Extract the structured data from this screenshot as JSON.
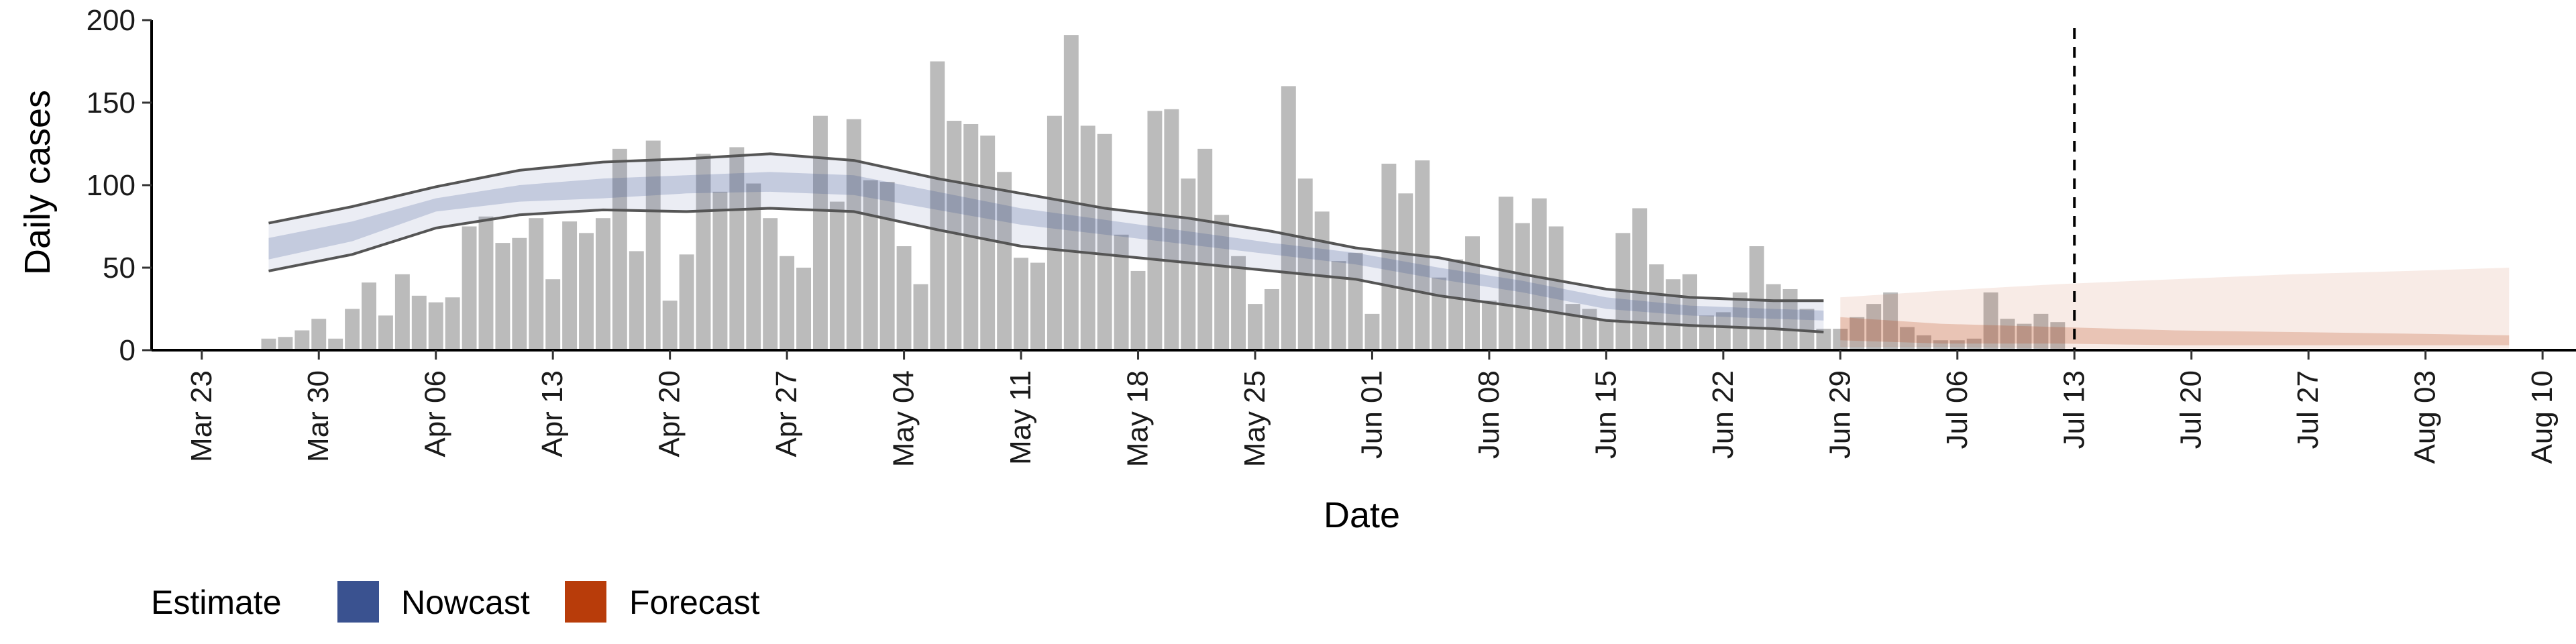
{
  "chart_data": {
    "type": "bar",
    "xlabel": "Date",
    "ylabel": "Daily cases",
    "ylim": [
      0,
      200
    ],
    "yticks": [
      0,
      50,
      100,
      150,
      200
    ],
    "xlim": [
      "2020-03-20",
      "2020-08-12"
    ],
    "xticks": [
      {
        "date": "2020-03-23",
        "label": "Mar 23"
      },
      {
        "date": "2020-03-30",
        "label": "Mar 30"
      },
      {
        "date": "2020-04-06",
        "label": "Apr 06"
      },
      {
        "date": "2020-04-13",
        "label": "Apr 13"
      },
      {
        "date": "2020-04-20",
        "label": "Apr 20"
      },
      {
        "date": "2020-04-27",
        "label": "Apr 27"
      },
      {
        "date": "2020-05-04",
        "label": "May 04"
      },
      {
        "date": "2020-05-11",
        "label": "May 11"
      },
      {
        "date": "2020-05-18",
        "label": "May 18"
      },
      {
        "date": "2020-05-25",
        "label": "May 25"
      },
      {
        "date": "2020-06-01",
        "label": "Jun 01"
      },
      {
        "date": "2020-06-08",
        "label": "Jun 08"
      },
      {
        "date": "2020-06-15",
        "label": "Jun 15"
      },
      {
        "date": "2020-06-22",
        "label": "Jun 22"
      },
      {
        "date": "2020-06-29",
        "label": "Jun 29"
      },
      {
        "date": "2020-07-06",
        "label": "Jul 06"
      },
      {
        "date": "2020-07-13",
        "label": "Jul 13"
      },
      {
        "date": "2020-07-20",
        "label": "Jul 20"
      },
      {
        "date": "2020-07-27",
        "label": "Jul 27"
      },
      {
        "date": "2020-08-03",
        "label": "Aug 03"
      },
      {
        "date": "2020-08-10",
        "label": "Aug 10"
      }
    ],
    "bars": {
      "start_date": "2020-03-27",
      "values": [
        7,
        8,
        12,
        19,
        7,
        25,
        41,
        21,
        46,
        33,
        29,
        32,
        75,
        81,
        65,
        68,
        80,
        43,
        78,
        71,
        80,
        122,
        60,
        127,
        30,
        58,
        119,
        96,
        123,
        101,
        80,
        57,
        50,
        142,
        90,
        140,
        103,
        102,
        63,
        40,
        175,
        139,
        137,
        130,
        108,
        56,
        53,
        142,
        191,
        136,
        131,
        70,
        48,
        145,
        146,
        104,
        122,
        82,
        57,
        28,
        37,
        160,
        104,
        84,
        54,
        59,
        22,
        113,
        95,
        115,
        44,
        55,
        69,
        30,
        93,
        77,
        92,
        75,
        28,
        25,
        18,
        71,
        86,
        52,
        43,
        46,
        21,
        23,
        35,
        63,
        40,
        37,
        25,
        13,
        13,
        20,
        28,
        35,
        14,
        9,
        6,
        6,
        7,
        35,
        19,
        16,
        22,
        17
      ]
    },
    "vline_date": "2020-07-13",
    "series": [
      {
        "name": "Nowcast",
        "color": "#3a5290",
        "dates": [
          "2020-03-27",
          "2020-04-01",
          "2020-04-06",
          "2020-04-11",
          "2020-04-16",
          "2020-04-21",
          "2020-04-26",
          "2020-05-01",
          "2020-05-06",
          "2020-05-11",
          "2020-05-16",
          "2020-05-21",
          "2020-05-26",
          "2020-05-31",
          "2020-06-05",
          "2020-06-10",
          "2020-06-15",
          "2020-06-20",
          "2020-06-25",
          "2020-06-28"
        ],
        "lower90": [
          48,
          58,
          74,
          82,
          85,
          84,
          86,
          84,
          73,
          63,
          58,
          53,
          48,
          43,
          33,
          26,
          18,
          15,
          13,
          11
        ],
        "upper90": [
          77,
          87,
          99,
          109,
          114,
          116,
          119,
          115,
          104,
          95,
          86,
          80,
          72,
          62,
          56,
          46,
          37,
          32,
          30,
          30
        ],
        "lower50": [
          55,
          66,
          84,
          90,
          92,
          95,
          96,
          94,
          85,
          76,
          70,
          64,
          58,
          52,
          43,
          35,
          25,
          21,
          19,
          18
        ],
        "upper50": [
          68,
          78,
          92,
          100,
          104,
          106,
          108,
          106,
          96,
          86,
          79,
          72,
          65,
          59,
          50,
          42,
          32,
          27,
          25,
          24
        ]
      },
      {
        "name": "Forecast",
        "color": "#b83c0a",
        "dates": [
          "2020-06-29",
          "2020-07-05",
          "2020-07-12",
          "2020-07-19",
          "2020-07-26",
          "2020-08-02",
          "2020-08-08"
        ],
        "lower90": [
          2,
          2,
          1,
          1,
          1,
          1,
          1
        ],
        "upper90": [
          32,
          36,
          40,
          43,
          46,
          48,
          50
        ],
        "lower50": [
          6,
          4,
          4,
          3,
          3,
          3,
          3
        ],
        "upper50": [
          20,
          16,
          14,
          12,
          11,
          10,
          9
        ]
      }
    ],
    "legend": {
      "title": "Estimate",
      "entries": [
        {
          "label": "Nowcast",
          "color": "#3a5290"
        },
        {
          "label": "Forecast",
          "color": "#b83c0a"
        }
      ],
      "position": "bottom-left"
    },
    "grid": false
  }
}
